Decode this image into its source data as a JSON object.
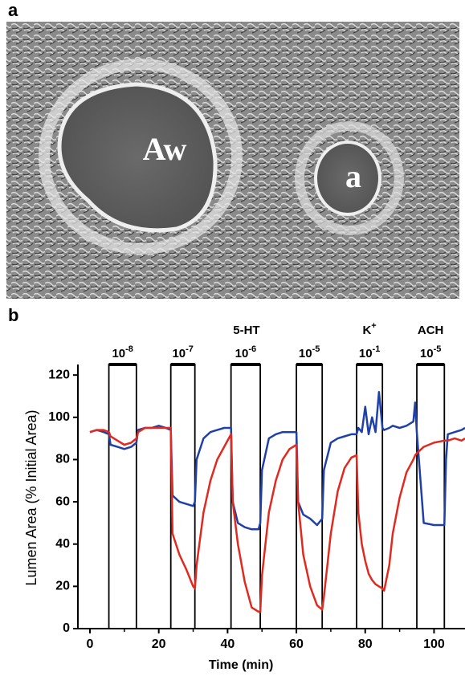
{
  "panel_a": {
    "label": "a",
    "regions": [
      "Aw",
      "a"
    ]
  },
  "chart_data": {
    "type": "line",
    "panel_label": "b",
    "x_label": "Time (min)",
    "y_label": "Lumen Area  (% Initial Area)",
    "xlim": [
      -3.5,
      109
    ],
    "xticks": [
      0,
      20,
      40,
      60,
      80,
      100
    ],
    "ylim": [
      0,
      125
    ],
    "yticks": [
      0,
      20,
      40,
      60,
      80,
      100,
      120
    ],
    "agents": [
      {
        "name": "5-HT"
      },
      {
        "name": "K",
        "superscript": "+"
      },
      {
        "name": "ACH"
      }
    ],
    "stimuli": [
      {
        "start": 5.5,
        "end": 13.5,
        "base": "10",
        "exponent": "-8"
      },
      {
        "start": 23.5,
        "end": 30.5,
        "base": "10",
        "exponent": "-7"
      },
      {
        "start": 41,
        "end": 49.5,
        "base": "10",
        "exponent": "-6"
      },
      {
        "start": 60,
        "end": 67.5,
        "base": "10",
        "exponent": "-5"
      },
      {
        "start": 77.5,
        "end": 85,
        "base": "10",
        "exponent": "-1"
      },
      {
        "start": 95,
        "end": 103,
        "base": "10",
        "exponent": "-5"
      }
    ],
    "x": [
      0,
      2,
      4,
      5.5,
      6,
      8,
      10,
      12,
      13.5,
      14,
      16,
      18,
      20,
      22,
      23.5,
      24,
      26,
      28,
      30,
      30.5,
      31,
      33,
      35,
      37,
      39,
      41,
      41.5,
      43,
      45,
      47,
      49,
      49.5,
      50,
      52,
      54,
      56,
      58,
      60,
      60.5,
      62,
      64,
      66,
      67.5,
      68,
      70,
      72,
      74,
      76,
      77.5,
      78,
      79,
      80,
      81,
      82,
      83,
      84,
      85,
      85.5,
      87,
      88,
      90,
      92,
      94,
      94.5,
      95,
      97,
      100,
      103,
      103.5,
      104,
      106,
      108,
      109
    ],
    "series": [
      {
        "color": "#2040a8",
        "values": [
          93,
          94,
          93,
          92,
          87,
          86,
          85,
          86,
          88,
          94,
          95,
          95,
          96,
          95,
          94,
          63,
          60,
          59,
          58,
          60,
          80,
          90,
          93,
          94,
          95,
          95,
          60,
          50,
          48,
          47,
          47,
          50,
          75,
          90,
          92,
          93,
          93,
          93,
          60,
          54,
          52,
          49,
          52,
          75,
          88,
          90,
          91,
          92,
          92,
          95,
          93,
          105,
          92,
          100,
          93,
          112,
          95,
          94,
          95,
          96,
          95,
          96,
          98,
          107,
          93,
          50,
          49,
          49,
          80,
          92,
          93,
          94,
          95
        ]
      },
      {
        "color": "#e02a20",
        "values": [
          93,
          94,
          94,
          93,
          91,
          89,
          87,
          88,
          90,
          93,
          95,
          95,
          95,
          95,
          95,
          45,
          35,
          28,
          20,
          19,
          30,
          55,
          70,
          80,
          86,
          92,
          60,
          40,
          22,
          10,
          8,
          8,
          25,
          55,
          70,
          80,
          85,
          87,
          60,
          35,
          20,
          11,
          9,
          15,
          45,
          65,
          76,
          81,
          82,
          55,
          40,
          32,
          26,
          23,
          21,
          20,
          19,
          18,
          30,
          45,
          62,
          74,
          80,
          82,
          83,
          86,
          88,
          89,
          89,
          89,
          90,
          89,
          90
        ]
      }
    ]
  }
}
